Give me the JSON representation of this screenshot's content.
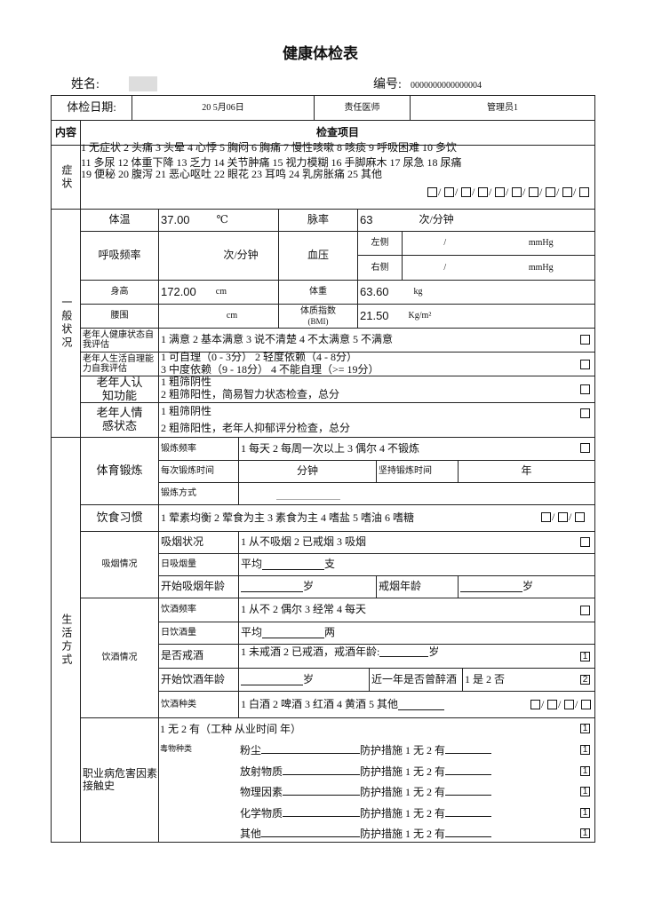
{
  "title": "健康体检表",
  "name_label": "姓名:",
  "id_label": "编号:",
  "id_value": "0000000000000004",
  "header": {
    "date_label": "体检日期:",
    "date_value": "20    5月06日",
    "doctor_label": "责任医师",
    "doctor_value": "管理员1"
  },
  "content_label": "内容",
  "items_label": "检查项目",
  "symptoms": {
    "label": "症状",
    "line1": "1 无症状 2 头痛 3 头晕 4 心悸 5 胸闷 6 胸痛 7 慢性咳嗽 8 咳痰 9 呼吸困难 10 多饮",
    "line2": "11 多尿 12 体重下降 13 乏力 14 关节肿痛 15 视力模糊 16 手脚麻木 17 尿急 18 尿痛",
    "line3": "19 便秘   20 腹泻   21 恶心呕吐   22 眼花   23 耳鸣   24 乳房胀痛   25 其他"
  },
  "general": {
    "label": "一般状况",
    "temp_label": "体温",
    "temp_value": "37.00",
    "temp_unit": "℃",
    "pulse_label": "脉率",
    "pulse_value": "63",
    "pulse_unit": "次/分钟",
    "resp_label": "呼吸频率",
    "resp_unit": "次/分钟",
    "bp_label": "血压",
    "bp_left": "左侧",
    "bp_right": "右侧",
    "bp_sep": "/",
    "bp_unit": "mmHg",
    "height_label": "身高",
    "height_value": "172.00",
    "height_unit": "cm",
    "weight_label": "体重",
    "weight_value": "63.60",
    "weight_unit": "kg",
    "waist_label": "腰围",
    "waist_unit": "cm",
    "bmi_label": "体质指数",
    "bmi_sub": "(BMI)",
    "bmi_value": "21.50",
    "bmi_unit": "Kg/m²",
    "health_label": "老年人健康状态自我评估",
    "health_options": "1 满意   2 基本满意   3 说不清楚   4 不太满意   5 不满意",
    "selfcare_label": "老年人生活自理能力自我评估",
    "selfcare_line1": "1 可自理（0 - 3分）          2 轻度依赖（4 - 8分）",
    "selfcare_line2": "3 中度依赖（9 - 18分）      4 不能自理（>= 19分）",
    "cognitive_label": "老年人认知功能",
    "cognitive_line1": "1 粗筛阴性",
    "cognitive_line2": "2 粗筛阳性，简易智力状态检查，总分",
    "emotion_label": "老年人情感状态",
    "emotion_line1": "1 粗筛阴性",
    "emotion_line2": "2 粗筛阳性，老年人抑郁评分检查，总分"
  },
  "lifestyle": {
    "label": "生活方式",
    "exercise_label": "体育锻炼",
    "freq_label": "锻炼频率",
    "freq_options": "1 每天   2 每周一次以上   3 偶尔   4 不锻炼",
    "duration_label": "每次锻炼时间",
    "duration_unit": "分钟",
    "persist_label": "坚持锻炼时间",
    "persist_unit": "年",
    "method_label": "锻炼方式",
    "diet_label": "饮食习惯",
    "diet_options": "1 荤素均衡   2 荤食为主   3 素食为主   4 嗜盐   5 嗜油   6 嗜糖",
    "smoke_label": "吸烟情况",
    "smoke_status_label": "吸烟状况",
    "smoke_status_options": "1 从不吸烟   2 已戒烟   3 吸烟",
    "smoke_daily_label": "日吸烟量",
    "smoke_daily_prefix": "平均",
    "smoke_daily_unit": "支",
    "smoke_start_label": "开始吸烟年龄",
    "age_unit": "岁",
    "smoke_quit_label": "戒烟年龄",
    "drink_label": "饮酒情况",
    "drink_freq_label": "饮酒频率",
    "drink_freq_options": "1 从不   2 偶尔   3 经常   4 每天",
    "drink_daily_label": "日饮酒量",
    "drink_daily_prefix": "平均",
    "drink_daily_unit": "两",
    "drink_quit_label": "是否戒酒",
    "drink_quit_options": "1 未戒酒   2 已戒酒，戒酒年龄:",
    "drink_quit_value": "1",
    "drink_start_label": "开始饮酒年龄",
    "drunk_label": "近一年是否曾醉酒",
    "drunk_options": "1 是   2 否",
    "drunk_value": "2",
    "drink_type_label": "饮酒种类",
    "drink_type_options": "1 白酒 2 啤酒 3 红酒 4 黄酒 5 其他"
  },
  "occupation": {
    "label": "职业病危害因素接触史",
    "line1": "1 无   2 有（工种            从业时间            年）",
    "line1_value": "1",
    "toxin_label": "毒物种类",
    "protect_label": "防护措施 1 无   2 有",
    "toxins": [
      {
        "name": "粉尘",
        "value": "1"
      },
      {
        "name": "放射物质",
        "value": "1"
      },
      {
        "name": "物理因素",
        "value": "1"
      },
      {
        "name": "化学物质",
        "value": "1"
      },
      {
        "name": "其他",
        "value": "1"
      }
    ]
  }
}
